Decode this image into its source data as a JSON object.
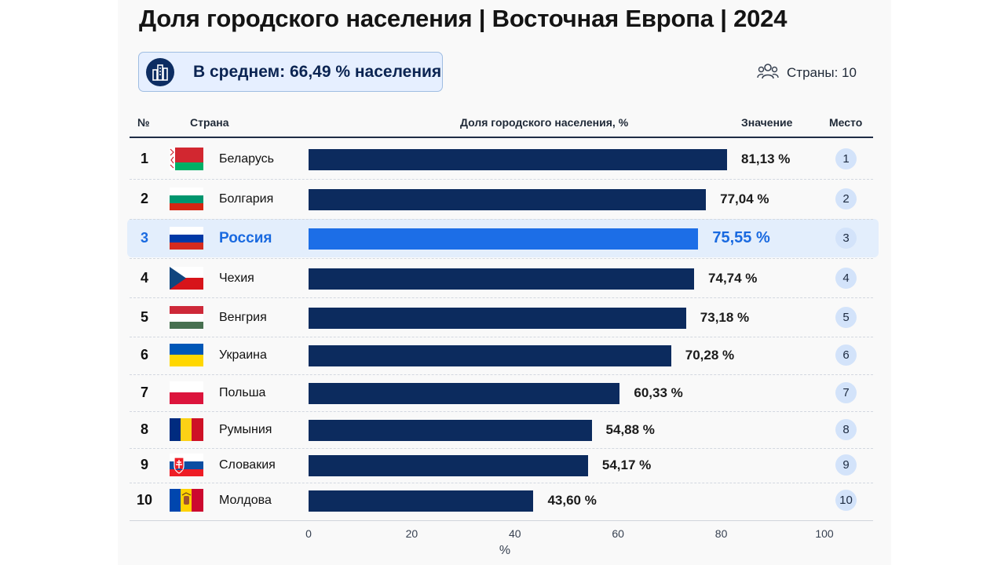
{
  "title": "Доля городского населения | Восточная Европа | 2024",
  "summary": {
    "average_text": "В среднем: 66,49 % населения",
    "countries_text": "Страны: 10"
  },
  "icons": {
    "summary": "city-buildings-icon",
    "countries": "people-group-icon"
  },
  "table": {
    "headers": {
      "rank": "№",
      "country": "Страна",
      "bar": "Доля городского населения, %",
      "value": "Значение",
      "place": "Место"
    }
  },
  "colors": {
    "bar": "#0c2b5e",
    "highlight_bar": "#1c6ee7",
    "highlight_bg": "#e3eefc",
    "badge": "#d3e3fa"
  },
  "chart_data": {
    "type": "bar",
    "orientation": "horizontal",
    "categories": [
      "Беларусь",
      "Болгария",
      "Россия",
      "Чехия",
      "Венгрия",
      "Украина",
      "Польша",
      "Румыния",
      "Словакия",
      "Молдова"
    ],
    "values": [
      81.13,
      77.04,
      75.55,
      74.74,
      73.18,
      70.28,
      60.33,
      54.88,
      54.17,
      43.6
    ],
    "value_labels": [
      "81,13 %",
      "77,04 %",
      "75,55 %",
      "74,74 %",
      "73,18 %",
      "70,28 %",
      "60,33 %",
      "54,88 %",
      "54,17 %",
      "43,60 %"
    ],
    "ranks": [
      "1",
      "2",
      "3",
      "4",
      "5",
      "6",
      "7",
      "8",
      "9",
      "10"
    ],
    "flags": [
      "belarus-flag-icon",
      "bulgaria-flag-icon",
      "russia-flag-icon",
      "czech-flag-icon",
      "hungary-flag-icon",
      "ukraine-flag-icon",
      "poland-flag-icon",
      "romania-flag-icon",
      "slovakia-flag-icon",
      "moldova-flag-icon"
    ],
    "highlight": "Россия",
    "xlim": [
      0,
      100
    ],
    "xticks": [
      "0",
      "20",
      "40",
      "60",
      "80",
      "100"
    ],
    "xlabel": "%",
    "grid": false
  }
}
